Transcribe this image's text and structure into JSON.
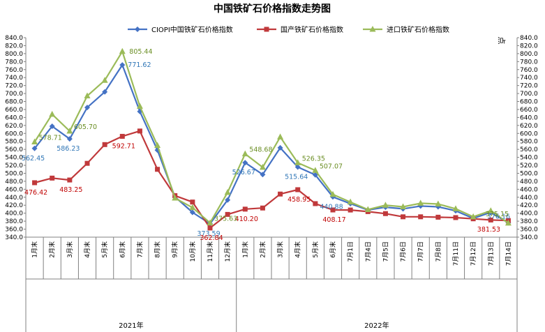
{
  "chart_data": {
    "type": "line",
    "title": "中国铁矿石价格指数走势图",
    "y_unit_right": "点",
    "ylim": [
      340,
      840
    ],
    "ystep": 20,
    "categories": [
      "1月末",
      "2月末",
      "3月末",
      "4月末",
      "5月末",
      "6月末",
      "7月末",
      "8月末",
      "9月末",
      "10月末",
      "11月末",
      "12月末",
      "1月末",
      "2月末",
      "3月末",
      "4月末",
      "5月末",
      "6月末",
      "7月1日",
      "7月4日",
      "7月5日",
      "7月6日",
      "7月7日",
      "7月8日",
      "7月11日",
      "7月12日",
      "7月13日",
      "7月14日"
    ],
    "year_groups": [
      {
        "label": "2021年",
        "start": 0,
        "end": 11
      },
      {
        "label": "2022年",
        "start": 12,
        "end": 27
      }
    ],
    "series": [
      {
        "name": "CIOPI中国铁矿石价格指数",
        "color": "#4472C4",
        "marker": "diamond",
        "values": [
          562.45,
          618,
          586.23,
          665,
          704,
          771.62,
          655,
          558,
          441,
          402,
          373.59,
          433,
          526.67,
          497,
          564,
          515.64,
          496,
          440.88,
          424,
          408,
          415,
          411,
          418,
          416,
          406,
          387,
          402,
          376.16
        ]
      },
      {
        "name": "国产铁矿石价格指数",
        "color": "#C0393B",
        "marker": "square",
        "values": [
          476.42,
          488,
          483.25,
          525,
          572,
          592.71,
          606,
          510,
          444,
          428,
          362.84,
          397,
          410.2,
          413,
          448,
          458.95,
          424,
          408.17,
          408,
          404,
          399,
          391,
          391,
          390,
          389,
          386,
          383,
          381.53
        ]
      },
      {
        "name": "进口铁矿石价格指数",
        "color": "#9BBB59",
        "marker": "triangle",
        "values": [
          578.71,
          648,
          605.7,
          694,
          733,
          805.44,
          668,
          570,
          438,
          414,
          375.63,
          452,
          548.68,
          515,
          591,
          526.35,
          507.07,
          447,
          428,
          409,
          420,
          416,
          425,
          423,
          411,
          391,
          406,
          375.15
        ]
      }
    ],
    "data_labels": [
      {
        "series": 0,
        "index": 0,
        "text": "562.45"
      },
      {
        "series": 0,
        "index": 2,
        "text": "586.23"
      },
      {
        "series": 0,
        "index": 5,
        "text": "771.62"
      },
      {
        "series": 0,
        "index": 10,
        "text": "373.59"
      },
      {
        "series": 0,
        "index": 12,
        "text": "526.67"
      },
      {
        "series": 0,
        "index": 15,
        "text": "515.64"
      },
      {
        "series": 0,
        "index": 17,
        "text": "440.88"
      },
      {
        "series": 0,
        "index": 27,
        "text": "376.16"
      },
      {
        "series": 1,
        "index": 0,
        "text": "476.42"
      },
      {
        "series": 1,
        "index": 2,
        "text": "483.25"
      },
      {
        "series": 1,
        "index": 5,
        "text": "592.71"
      },
      {
        "series": 1,
        "index": 10,
        "text": "362.84"
      },
      {
        "series": 1,
        "index": 12,
        "text": "410.20"
      },
      {
        "series": 1,
        "index": 15,
        "text": "458.95"
      },
      {
        "series": 1,
        "index": 17,
        "text": "408.17"
      },
      {
        "series": 1,
        "index": 27,
        "text": "381.53"
      },
      {
        "series": 2,
        "index": 0,
        "text": "578.71"
      },
      {
        "series": 2,
        "index": 2,
        "text": "605.70"
      },
      {
        "series": 2,
        "index": 5,
        "text": "805.44"
      },
      {
        "series": 2,
        "index": 10,
        "text": "375.63"
      },
      {
        "series": 2,
        "index": 12,
        "text": "548.68"
      },
      {
        "series": 2,
        "index": 15,
        "text": "526.35"
      },
      {
        "series": 2,
        "index": 16,
        "text": "507.07"
      },
      {
        "series": 2,
        "index": 27,
        "text": "375.15"
      }
    ],
    "legend_position": "top",
    "grid": false
  }
}
